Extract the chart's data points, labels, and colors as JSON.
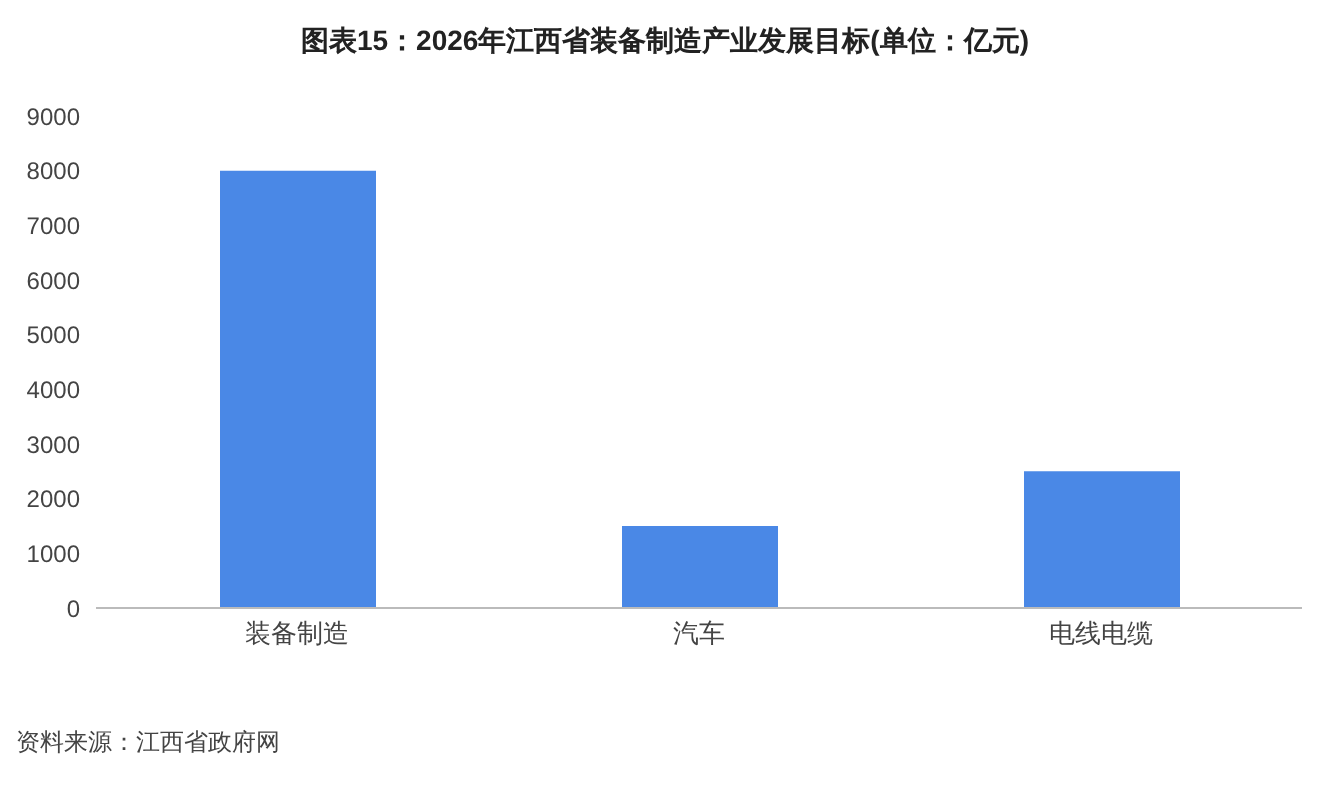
{
  "chart_data": {
    "type": "bar",
    "title": "图表15：2026年江西省装备制造产业发展目标(单位：亿元)",
    "categories": [
      "装备制造",
      "汽车",
      "电线电缆"
    ],
    "values": [
      8000,
      1500,
      2500
    ],
    "color": "#4a88e6",
    "ylim": [
      0,
      9000
    ],
    "yticks": [
      0,
      1000,
      2000,
      3000,
      4000,
      5000,
      6000,
      7000,
      8000,
      9000
    ],
    "grid": false,
    "legend": false,
    "annotations": [
      "资料来源：江西省政府网"
    ]
  }
}
